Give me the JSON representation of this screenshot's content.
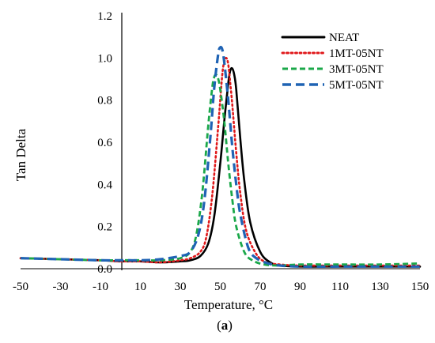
{
  "chart_data": {
    "type": "line",
    "title": "",
    "xlabel": "Temperature, °C",
    "ylabel": "Tan Delta",
    "caption_prefix": "(",
    "caption_letter": "a",
    "caption_suffix": ")",
    "xlim": [
      -50,
      150
    ],
    "ylim": [
      0,
      1.2
    ],
    "xticks": [
      "-50",
      "-30",
      "-10",
      "10",
      "30",
      "50",
      "70",
      "90",
      "110",
      "130",
      "150"
    ],
    "xtick_values": [
      -50,
      -30,
      -10,
      10,
      30,
      50,
      70,
      90,
      110,
      130,
      150
    ],
    "yticks": [
      "0.0",
      "0.2",
      "0.4",
      "0.6",
      "0.8",
      "1.0",
      "1.2"
    ],
    "ytick_values": [
      0,
      0.2,
      0.4,
      0.6,
      0.8,
      1.0,
      1.2
    ],
    "grid": false,
    "legend_position": "top-right",
    "series": [
      {
        "name": "NEAT",
        "color": "#000000",
        "dash": "solid",
        "x": [
          -50,
          -30,
          -10,
          0,
          10,
          20,
          30,
          35,
          40,
          44,
          47,
          50,
          52,
          54,
          55,
          56,
          57,
          58,
          60,
          62,
          65,
          70,
          75,
          80,
          90,
          110,
          130,
          150
        ],
        "y": [
          0.05,
          0.045,
          0.04,
          0.035,
          0.035,
          0.03,
          0.035,
          0.04,
          0.06,
          0.12,
          0.25,
          0.5,
          0.7,
          0.88,
          0.94,
          0.95,
          0.92,
          0.85,
          0.62,
          0.42,
          0.22,
          0.08,
          0.03,
          0.015,
          0.01,
          0.01,
          0.01,
          0.01
        ]
      },
      {
        "name": "1MT-05NT",
        "color": "#e0191b",
        "dash": "dotted",
        "x": [
          -50,
          -30,
          -10,
          0,
          10,
          20,
          30,
          35,
          40,
          43,
          46,
          49,
          51,
          52,
          53,
          54,
          55,
          56,
          58,
          60,
          63,
          68,
          73,
          80,
          90,
          110,
          130,
          150
        ],
        "y": [
          0.05,
          0.045,
          0.04,
          0.035,
          0.035,
          0.03,
          0.04,
          0.05,
          0.08,
          0.15,
          0.35,
          0.68,
          0.92,
          0.98,
          1.0,
          0.97,
          0.88,
          0.78,
          0.55,
          0.36,
          0.18,
          0.07,
          0.03,
          0.02,
          0.015,
          0.015,
          0.015,
          0.015
        ]
      },
      {
        "name": "3MT-05NT",
        "color": "#1ba84a",
        "dash": "dashed",
        "x": [
          -50,
          -30,
          -10,
          0,
          10,
          20,
          30,
          35,
          38,
          41,
          44,
          46,
          47,
          48,
          49,
          50,
          52,
          54,
          56,
          58,
          62,
          66,
          72,
          80,
          90,
          110,
          130,
          150
        ],
        "y": [
          0.05,
          0.045,
          0.04,
          0.04,
          0.04,
          0.04,
          0.05,
          0.08,
          0.16,
          0.36,
          0.68,
          0.86,
          0.91,
          0.92,
          0.9,
          0.85,
          0.7,
          0.5,
          0.33,
          0.2,
          0.08,
          0.04,
          0.02,
          0.015,
          0.02,
          0.02,
          0.02,
          0.025
        ]
      },
      {
        "name": "5MT-05NT",
        "color": "#1f63b4",
        "dash": "longdash",
        "x": [
          -50,
          -30,
          -10,
          0,
          10,
          20,
          30,
          35,
          39,
          42,
          45,
          47,
          49,
          50,
          51,
          52,
          54,
          56,
          58,
          60,
          64,
          68,
          74,
          80,
          90,
          110,
          130,
          150
        ],
        "y": [
          0.05,
          0.045,
          0.04,
          0.04,
          0.04,
          0.045,
          0.06,
          0.08,
          0.16,
          0.32,
          0.62,
          0.86,
          1.02,
          1.05,
          1.04,
          0.98,
          0.8,
          0.58,
          0.4,
          0.26,
          0.1,
          0.05,
          0.025,
          0.015,
          0.01,
          0.01,
          0.01,
          0.01
        ]
      }
    ]
  }
}
